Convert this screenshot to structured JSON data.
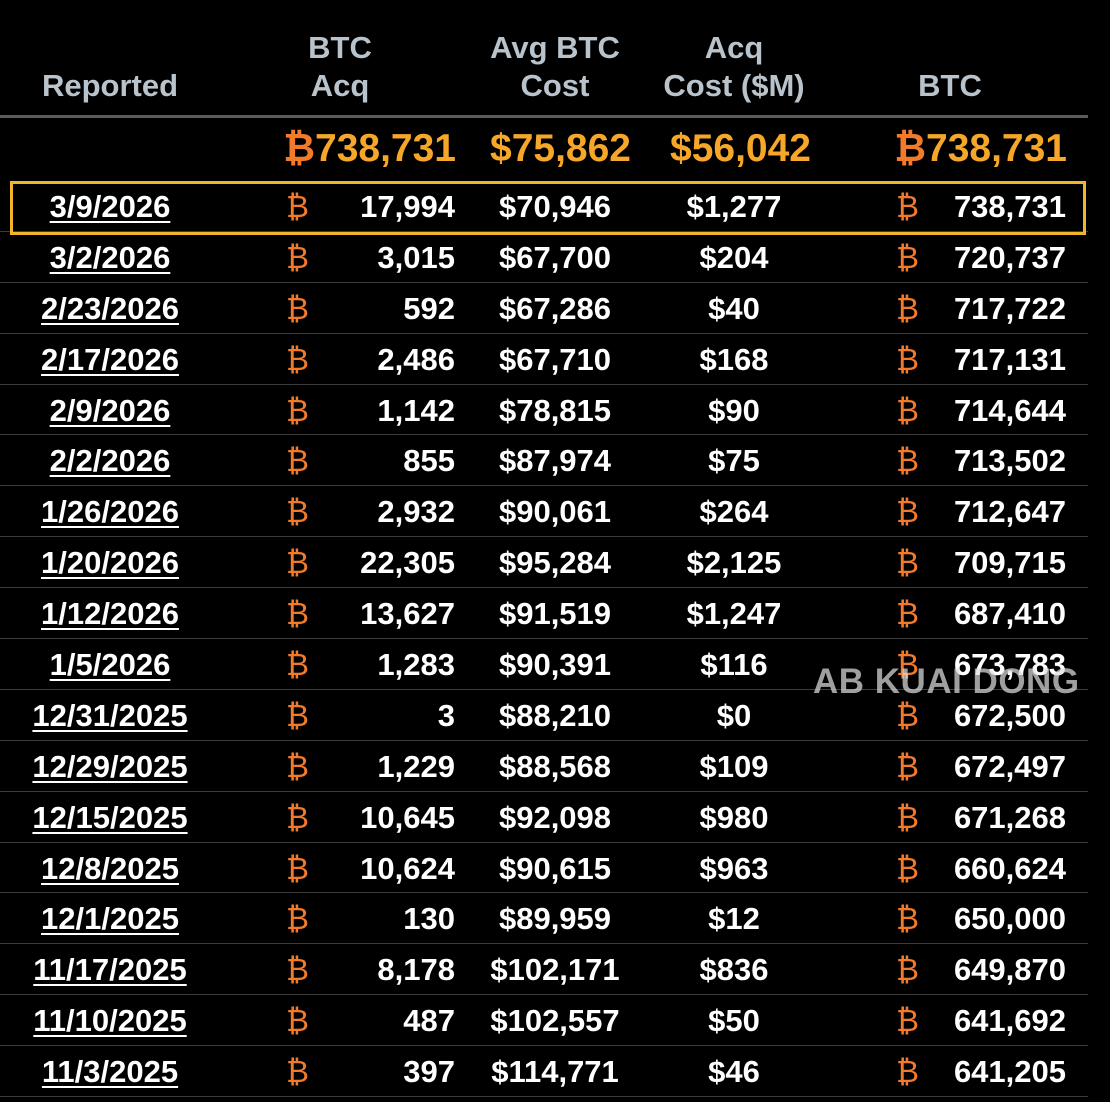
{
  "headers": {
    "reported": "Reported",
    "btc_acq": "BTC\nAcq",
    "avg_cost": "Avg BTC\nCost",
    "acq_cost": "Acq\nCost ($M)",
    "btc": "BTC"
  },
  "totals": {
    "btc_symbol": "₿",
    "btc_acq": "738,731",
    "avg_cost": "$75,862",
    "acq_cost": "$56,042",
    "btc": "738,731"
  },
  "rows": [
    {
      "date": "3/9/2026",
      "b": "₿",
      "acq": "17,994",
      "avg": "$70,946",
      "cost": "$1,277",
      "btc": "738,731"
    },
    {
      "date": "3/2/2026",
      "b": "₿",
      "acq": "3,015",
      "avg": "$67,700",
      "cost": "$204",
      "btc": "720,737"
    },
    {
      "date": "2/23/2026",
      "b": "₿",
      "acq": "592",
      "avg": "$67,286",
      "cost": "$40",
      "btc": "717,722"
    },
    {
      "date": "2/17/2026",
      "b": "₿",
      "acq": "2,486",
      "avg": "$67,710",
      "cost": "$168",
      "btc": "717,131"
    },
    {
      "date": "2/9/2026",
      "b": "₿",
      "acq": "1,142",
      "avg": "$78,815",
      "cost": "$90",
      "btc": "714,644"
    },
    {
      "date": "2/2/2026",
      "b": "₿",
      "acq": "855",
      "avg": "$87,974",
      "cost": "$75",
      "btc": "713,502"
    },
    {
      "date": "1/26/2026",
      "b": "₿",
      "acq": "2,932",
      "avg": "$90,061",
      "cost": "$264",
      "btc": "712,647"
    },
    {
      "date": "1/20/2026",
      "b": "₿",
      "acq": "22,305",
      "avg": "$95,284",
      "cost": "$2,125",
      "btc": "709,715"
    },
    {
      "date": "1/12/2026",
      "b": "₿",
      "acq": "13,627",
      "avg": "$91,519",
      "cost": "$1,247",
      "btc": "687,410"
    },
    {
      "date": "1/5/2026",
      "b": "₿",
      "acq": "1,283",
      "avg": "$90,391",
      "cost": "$116",
      "btc": "673,783"
    },
    {
      "date": "12/31/2025",
      "b": "₿",
      "acq": "3",
      "avg": "$88,210",
      "cost": "$0",
      "btc": "672,500"
    },
    {
      "date": "12/29/2025",
      "b": "₿",
      "acq": "1,229",
      "avg": "$88,568",
      "cost": "$109",
      "btc": "672,497"
    },
    {
      "date": "12/15/2025",
      "b": "₿",
      "acq": "10,645",
      "avg": "$92,098",
      "cost": "$980",
      "btc": "671,268"
    },
    {
      "date": "12/8/2025",
      "b": "₿",
      "acq": "10,624",
      "avg": "$90,615",
      "cost": "$963",
      "btc": "660,624"
    },
    {
      "date": "12/1/2025",
      "b": "₿",
      "acq": "130",
      "avg": "$89,959",
      "cost": "$12",
      "btc": "650,000"
    },
    {
      "date": "11/17/2025",
      "b": "₿",
      "acq": "8,178",
      "avg": "$102,171",
      "cost": "$836",
      "btc": "649,870"
    },
    {
      "date": "11/10/2025",
      "b": "₿",
      "acq": "487",
      "avg": "$102,557",
      "cost": "$50",
      "btc": "641,692"
    },
    {
      "date": "11/3/2025",
      "b": "₿",
      "acq": "397",
      "avg": "$114,771",
      "cost": "$46",
      "btc": "641,205"
    }
  ],
  "watermark": "AB KUAI DONG",
  "colors": {
    "background": "#000000",
    "header_text": "#b9c3cc",
    "totals_text": "#f6a72a",
    "btc_symbol": "#f27a2a",
    "highlight_border": "#f1b52a"
  }
}
